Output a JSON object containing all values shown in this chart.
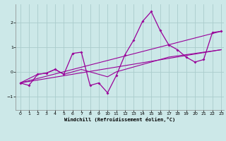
{
  "xlabel": "Windchill (Refroidissement éolien,°C)",
  "bg_color": "#cce8e8",
  "grid_color": "#aacccc",
  "line_color": "#990099",
  "xlim": [
    -0.5,
    23.3
  ],
  "ylim": [
    -1.55,
    2.75
  ],
  "xticks": [
    0,
    1,
    2,
    3,
    4,
    5,
    6,
    7,
    8,
    9,
    10,
    11,
    12,
    13,
    14,
    15,
    16,
    17,
    18,
    19,
    20,
    21,
    22,
    23
  ],
  "yticks": [
    -1,
    0,
    1,
    2
  ],
  "series1_x": [
    0,
    1,
    2,
    3,
    4,
    5,
    6,
    7,
    8,
    9,
    10,
    11,
    12,
    13,
    14,
    15,
    16,
    17,
    18,
    19,
    20,
    21,
    22,
    23
  ],
  "series1_y": [
    -0.45,
    -0.55,
    -0.1,
    -0.05,
    0.1,
    -0.1,
    0.75,
    0.8,
    -0.55,
    -0.45,
    -0.85,
    -0.15,
    0.7,
    1.3,
    2.05,
    2.45,
    1.7,
    1.1,
    0.9,
    0.6,
    0.4,
    0.5,
    1.6,
    1.65
  ],
  "series2_x": [
    0,
    2,
    3,
    4,
    5,
    7,
    10,
    11,
    12,
    13,
    14,
    16,
    17,
    18,
    19,
    20,
    21,
    22,
    23
  ],
  "series2_y": [
    -0.45,
    -0.1,
    -0.05,
    0.1,
    -0.1,
    0.1,
    -0.2,
    0.0,
    0.1,
    0.2,
    0.3,
    0.5,
    0.6,
    0.65,
    0.7,
    0.75,
    0.8,
    0.85,
    0.9
  ],
  "series3_x": [
    0,
    23
  ],
  "series3_y": [
    -0.45,
    1.65
  ],
  "series4_x": [
    0,
    23
  ],
  "series4_y": [
    -0.45,
    0.9
  ]
}
